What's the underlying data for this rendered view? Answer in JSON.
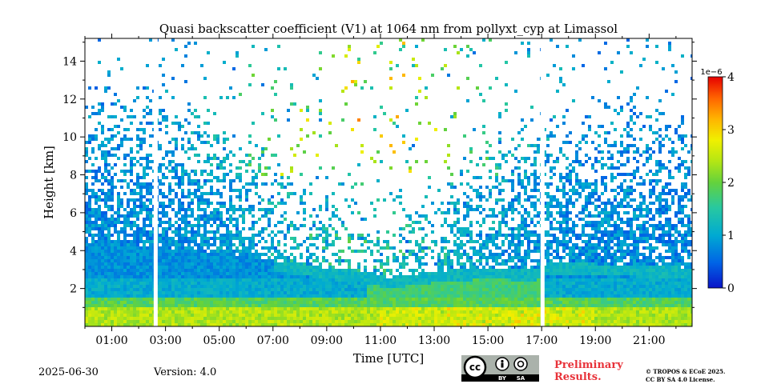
{
  "footer": {
    "date": "2025-06-30",
    "version": "Version: 4.0",
    "preliminary_line1": "Preliminary",
    "preliminary_line2": "Results.",
    "copyright_line1": "© TROPOS & ECoE 2025.",
    "copyright_line2": "CC BY SA 4.0 License.",
    "badge_cc": "cc",
    "badge_by": "BY",
    "badge_sa": "SA"
  },
  "chart_data": {
    "type": "heatmap",
    "title": "Quasi backscatter coefficient (V1) at 1064 nm from pollyxt_cyp at Limassol",
    "xlabel": "Time [UTC]",
    "ylabel": "Height [km]",
    "x_unit": "hours UTC",
    "xlim": [
      0.0,
      22.6
    ],
    "ylim": [
      0.0,
      15.2
    ],
    "x_ticks": [
      1,
      3,
      5,
      7,
      9,
      11,
      13,
      15,
      17,
      19,
      21
    ],
    "x_tick_labels": [
      "01:00",
      "03:00",
      "05:00",
      "07:00",
      "09:00",
      "11:00",
      "13:00",
      "15:00",
      "17:00",
      "19:00",
      "21:00"
    ],
    "y_ticks": [
      2,
      4,
      6,
      8,
      10,
      12,
      14
    ],
    "y_tick_labels": [
      "2",
      "4",
      "6",
      "8",
      "10",
      "12",
      "14"
    ],
    "colorbar": {
      "range": [
        0,
        4
      ],
      "ticks": [
        0,
        1,
        2,
        3,
        4
      ],
      "tick_labels": [
        "0",
        "1",
        "2",
        "3",
        "4"
      ],
      "scale_label": "1e−6",
      "colormap": [
        "#0a14c8",
        "#0064e6",
        "#00aad2",
        "#28c8a0",
        "#64d23c",
        "#b4e614",
        "#f0f000",
        "#ffb400",
        "#ff6400",
        "#e60000"
      ]
    },
    "data_gaps_hours": [
      [
        2.5,
        2.7
      ],
      [
        16.9,
        17.1
      ]
    ],
    "boundary_layer_top_km": [
      [
        0,
        4.4
      ],
      [
        3,
        4.1
      ],
      [
        5,
        3.9
      ],
      [
        7,
        3.5
      ],
      [
        9,
        3.1
      ],
      [
        10.5,
        2.9
      ],
      [
        11.3,
        2.6
      ],
      [
        13,
        2.9
      ],
      [
        15,
        3.1
      ],
      [
        16.8,
        3.0
      ],
      [
        17.2,
        3.3
      ],
      [
        19,
        3.3
      ],
      [
        22.6,
        3.1
      ]
    ]
  }
}
